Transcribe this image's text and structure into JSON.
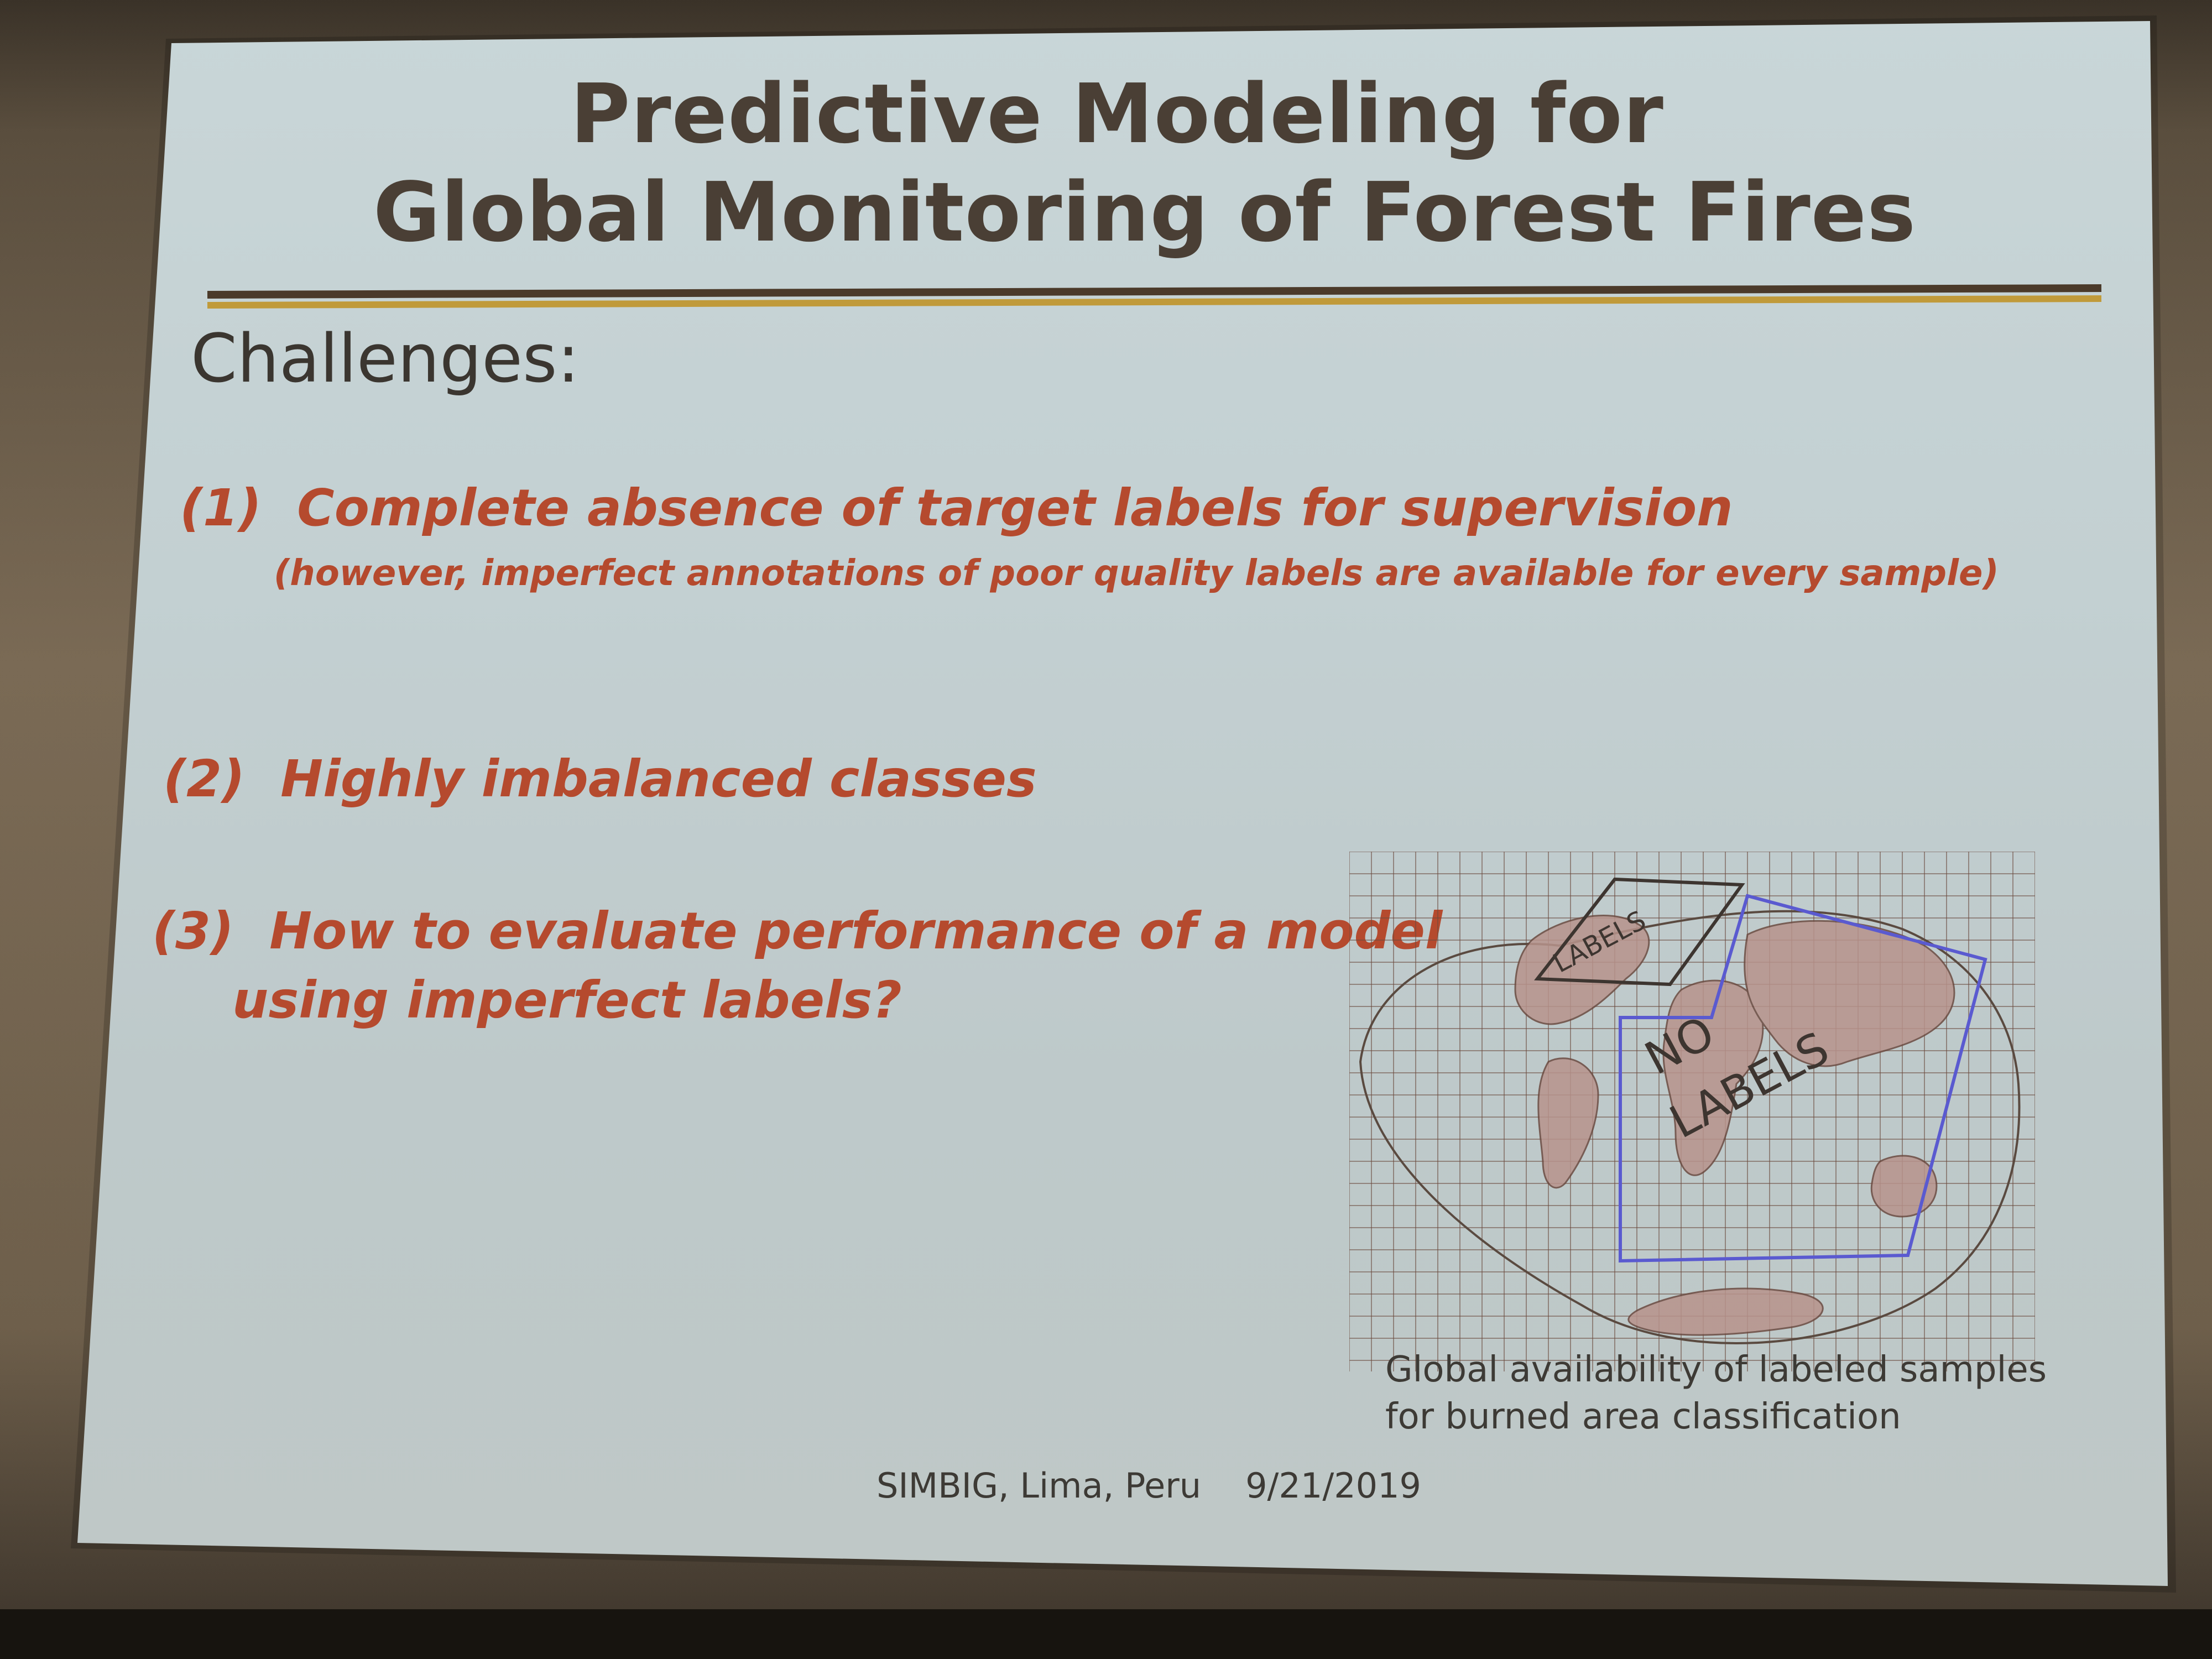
{
  "slide": {
    "title_line1": "Predictive Modeling for",
    "title_line2": "Global Monitoring of Forest Fires",
    "section_heading": "Challenges:",
    "challenges": [
      {
        "number": "(1)",
        "text": "Complete absence of target labels for supervision",
        "note": "(however, imperfect annotations of poor quality labels are available for every sample)"
      },
      {
        "number": "(2)",
        "text": "Highly imbalanced classes"
      },
      {
        "number": "(3)",
        "text_line1": "How to evaluate performance of a model",
        "text_line2": "using imperfect labels?"
      }
    ],
    "figure": {
      "region_label_small": "LABELS",
      "region_label_large_1": "NO",
      "region_label_large_2": "LABELS",
      "caption_line1": "Global availability of labeled samples",
      "caption_line2": "for burned area classification"
    },
    "footer": {
      "venue": "SIMBIG, Lima, Peru",
      "date": "9/21/2019"
    }
  },
  "colors": {
    "title": "#4a3f35",
    "challenge_text": "#b54a2e",
    "rule_dark": "#4b3a2a",
    "rule_gold": "#c09a3a",
    "grid": "#6b4a3e",
    "no_labels_box": "#5a5ad0"
  }
}
